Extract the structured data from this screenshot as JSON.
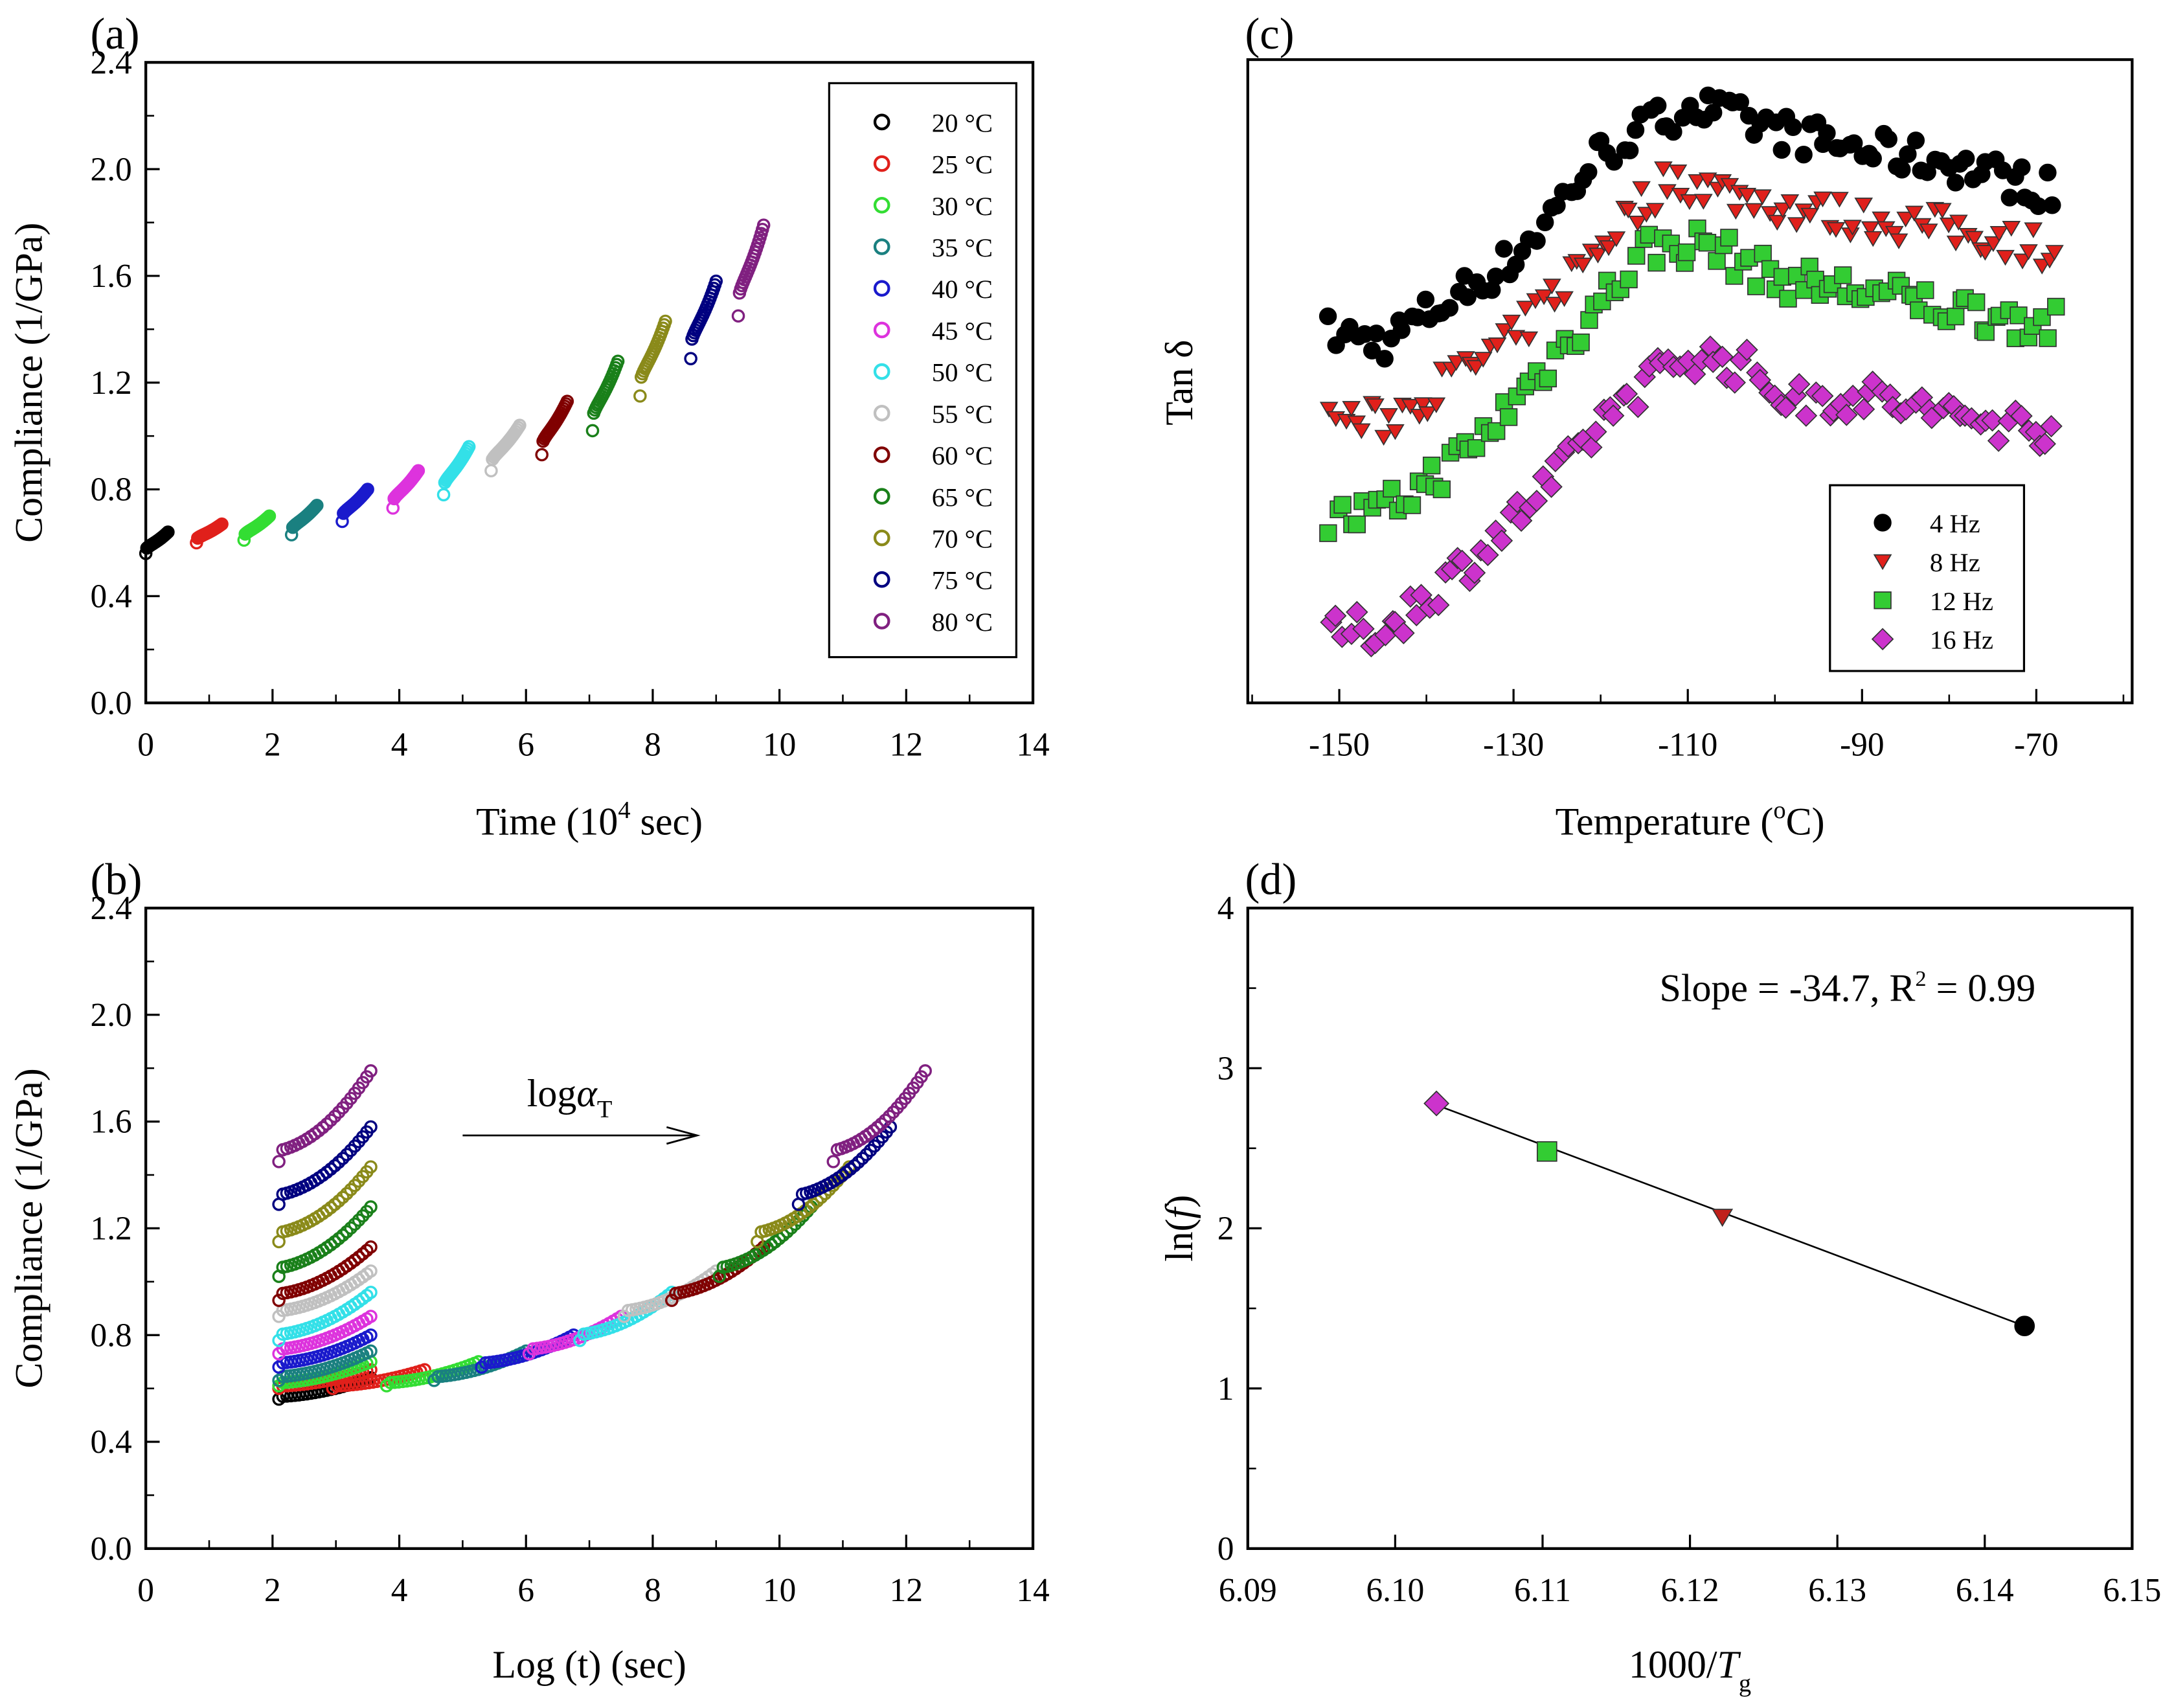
{
  "chart_data": [
    {
      "id": "a",
      "type": "scatter",
      "panel_label": "(a)",
      "xlabel": {
        "pre": "Time (10",
        "sup": "4",
        "post": " sec)"
      },
      "ylabel": "Compliance (1/GPa)",
      "xlim": [
        0,
        14
      ],
      "ylim": [
        0,
        2.4
      ],
      "xticks": [
        0,
        2,
        4,
        6,
        8,
        10,
        12,
        14
      ],
      "yticks": [
        "0.0",
        "0.4",
        "0.8",
        "1.2",
        "1.6",
        "2.0",
        "2.4"
      ],
      "legend_position": "top-right",
      "series": [
        {
          "name": "20 °C",
          "color": "#000000",
          "t": [
            0.0,
            0.35
          ],
          "c": [
            0.56,
            0.64
          ]
        },
        {
          "name": "25 °C",
          "color": "#e0201b",
          "t": [
            0.8,
            1.2
          ],
          "c": [
            0.6,
            0.67
          ]
        },
        {
          "name": "30 °C",
          "color": "#33dd33",
          "t": [
            1.55,
            1.95
          ],
          "c": [
            0.61,
            0.7
          ]
        },
        {
          "name": "35 °C",
          "color": "#1a8080",
          "t": [
            2.3,
            2.7
          ],
          "c": [
            0.63,
            0.74
          ]
        },
        {
          "name": "40 °C",
          "color": "#1a1acc",
          "t": [
            3.1,
            3.5
          ],
          "c": [
            0.68,
            0.8
          ]
        },
        {
          "name": "45 °C",
          "color": "#dd33dd",
          "t": [
            3.9,
            4.3
          ],
          "c": [
            0.73,
            0.87
          ]
        },
        {
          "name": "50 °C",
          "color": "#33e0e8",
          "t": [
            4.7,
            5.1
          ],
          "c": [
            0.78,
            0.96
          ]
        },
        {
          "name": "55 °C",
          "color": "#c0c0c0",
          "t": [
            5.45,
            5.9
          ],
          "c": [
            0.87,
            1.04
          ]
        },
        {
          "name": "60 °C",
          "color": "#800000",
          "t": [
            6.25,
            6.65
          ],
          "c": [
            0.93,
            1.13
          ]
        },
        {
          "name": "65 °C",
          "color": "#1a801a",
          "t": [
            7.05,
            7.45
          ],
          "c": [
            1.02,
            1.28
          ]
        },
        {
          "name": "70 °C",
          "color": "#8a8a1a",
          "t": [
            7.8,
            8.2
          ],
          "c": [
            1.15,
            1.43
          ]
        },
        {
          "name": "75 °C",
          "color": "#000080",
          "t": [
            8.6,
            9.0
          ],
          "c": [
            1.29,
            1.58
          ]
        },
        {
          "name": "80 °C",
          "color": "#802080",
          "t": [
            9.35,
            9.75
          ],
          "c": [
            1.45,
            1.79
          ]
        }
      ]
    },
    {
      "id": "b",
      "type": "scatter",
      "panel_label": "(b)",
      "xlabel": "Log (t) (sec)",
      "ylabel": "Compliance (1/GPa)",
      "xlim": [
        0,
        14
      ],
      "ylim": [
        0,
        2.4
      ],
      "xticks": [
        0,
        2,
        4,
        6,
        8,
        10,
        12,
        14
      ],
      "yticks": [
        "0.0",
        "0.4",
        "0.8",
        "1.2",
        "1.6",
        "2.0",
        "2.4"
      ],
      "logt_range": [
        2.1,
        3.55
      ],
      "shift_log_aT": [
        0,
        0.85,
        1.7,
        2.45,
        3.2,
        3.95,
        4.75,
        5.45,
        6.2,
        6.95,
        7.55,
        8.2,
        8.75
      ],
      "annotation": {
        "pre": "log",
        "greek": "α",
        "sub": "T",
        "arrow_from": [
          5.0,
          1.6
        ],
        "arrow_to": [
          8.7,
          1.6
        ]
      }
    },
    {
      "id": "c",
      "type": "scatter",
      "panel_label": "(c)",
      "xlabel": {
        "pre": "Temperature (",
        "sup": "o",
        "post": "C)"
      },
      "ylabel": "Tan δ",
      "xlim": [
        -160.5,
        -59
      ],
      "ylim": [
        0,
        1
      ],
      "xticks": [
        -150,
        -130,
        -110,
        -90,
        -70
      ],
      "legend_position": "bottom-right",
      "series": [
        {
          "name": "4 Hz",
          "color": "#000000",
          "marker": "circle",
          "x": [
            -151,
            -145,
            -130,
            -120,
            -110,
            -100,
            -90,
            -80,
            -68
          ],
          "y": [
            0.575,
            0.56,
            0.69,
            0.855,
            0.93,
            0.89,
            0.86,
            0.84,
            0.795
          ]
        },
        {
          "name": "8 Hz",
          "color": "#e0201b",
          "marker": "triangle-down",
          "x": [
            -151,
            -145,
            -130,
            -120,
            -112,
            -105,
            -95,
            -80,
            -68
          ],
          "y": [
            0.446,
            0.435,
            0.565,
            0.715,
            0.817,
            0.79,
            0.76,
            0.737,
            0.705
          ]
        },
        {
          "name": "12 Hz",
          "color": "#33cc33",
          "marker": "square",
          "x": [
            -151,
            -145,
            -135,
            -125,
            -115,
            -108,
            -100,
            -90,
            -80,
            -68
          ],
          "y": [
            0.284,
            0.295,
            0.392,
            0.543,
            0.705,
            0.715,
            0.66,
            0.64,
            0.614,
            0.586
          ]
        },
        {
          "name": "16 Hz",
          "color": "#cc33cc",
          "marker": "diamond",
          "x": [
            -151,
            -145,
            -135,
            -125,
            -118,
            -110,
            -103,
            -98,
            -90,
            -80,
            -68
          ],
          "y": [
            0.112,
            0.112,
            0.22,
            0.35,
            0.468,
            0.543,
            0.52,
            0.468,
            0.478,
            0.446,
            0.425
          ]
        }
      ]
    },
    {
      "id": "d",
      "type": "scatter",
      "panel_label": "(d)",
      "xlabel": {
        "pre": "1000/",
        "ital": "T",
        "sub": "g"
      },
      "ylabel": {
        "pre": "ln(",
        "ital": "f",
        "post": ")"
      },
      "xlim": [
        6.09,
        6.15
      ],
      "ylim": [
        0,
        4
      ],
      "xticks": [
        "6.09",
        "6.10",
        "6.11",
        "6.12",
        "6.13",
        "6.14",
        "6.15"
      ],
      "yticks": [
        "0",
        "1",
        "2",
        "3",
        "4"
      ],
      "annotation": {
        "pre": "Slope = -34.7, R",
        "sup": "2",
        "post": " = 0.99"
      },
      "points": [
        {
          "x": 6.1028,
          "y": 2.78,
          "marker": "diamond",
          "color": "#cc33cc"
        },
        {
          "x": 6.1103,
          "y": 2.48,
          "marker": "square",
          "color": "#33cc33"
        },
        {
          "x": 6.1222,
          "y": 2.07,
          "marker": "triangle-down",
          "color": "#c0201b"
        },
        {
          "x": 6.1427,
          "y": 1.39,
          "marker": "circle",
          "color": "#000000"
        }
      ],
      "fit_line": {
        "x": [
          6.1028,
          6.1427
        ],
        "y": [
          2.77,
          1.39
        ]
      }
    }
  ]
}
